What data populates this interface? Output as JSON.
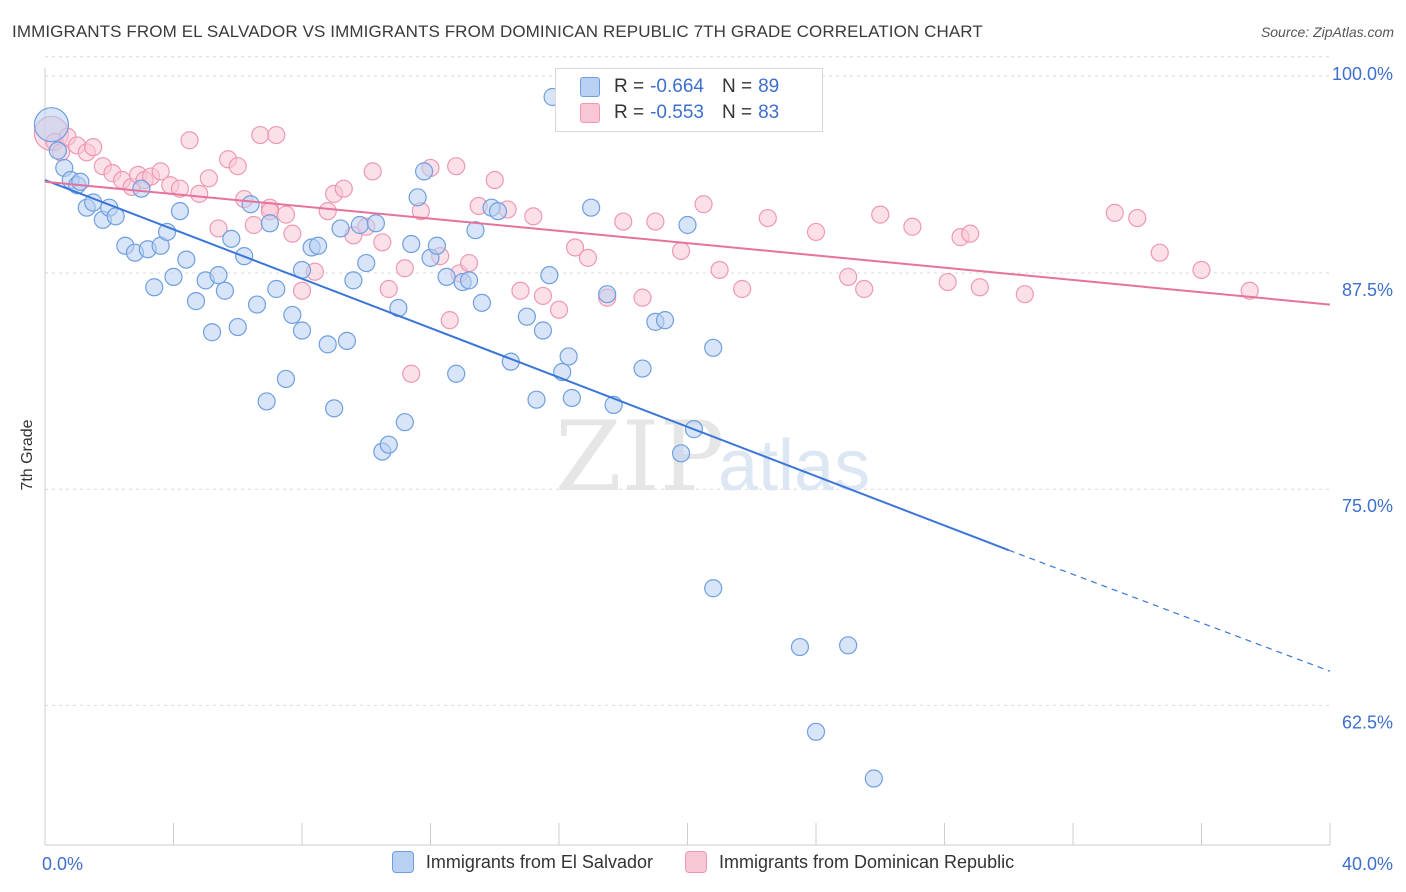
{
  "title": "IMMIGRANTS FROM EL SALVADOR VS IMMIGRANTS FROM DOMINICAN REPUBLIC 7TH GRADE CORRELATION CHART",
  "source": "Source: ZipAtlas.com",
  "watermark": {
    "zip": "ZIP",
    "atlas": "atlas"
  },
  "colors": {
    "blue_fill": "#b8d0f2",
    "blue_stroke": "#6f9fe0",
    "blue_line": "#3a76d8",
    "pink_fill": "#f9c6d6",
    "pink_stroke": "#ee99b4",
    "pink_line": "#e5739c",
    "tick_label": "#3d6fcf",
    "grid": "#d9d9d9"
  },
  "stats": [
    {
      "r_label": "R = ",
      "r_value": "-0.664",
      "n_label": "N = ",
      "n_value": "89"
    },
    {
      "r_label": "R = ",
      "r_value": "-0.553",
      "n_label": "N = ",
      "n_value": "83"
    }
  ],
  "chart_data": {
    "type": "scatter",
    "title": "IMMIGRANTS FROM EL SALVADOR VS IMMIGRANTS FROM DOMINICAN REPUBLIC 7TH GRADE CORRELATION CHART",
    "xlabel": "",
    "ylabel": "7th Grade",
    "xlim": [
      0,
      40
    ],
    "ylim": [
      50,
      100
    ],
    "x_tick_labels": [
      "0.0%",
      "40.0%"
    ],
    "y_ticks": [
      100,
      87.5,
      75,
      62.5
    ],
    "y_tick_labels": [
      "100.0%",
      "87.5%",
      "75.0%",
      "62.5%"
    ],
    "grid": true,
    "legend_position": "bottom",
    "series": [
      {
        "name": "Immigrants from El Salvador",
        "color": "#6f9fe0",
        "trend": {
          "x0": 0,
          "y0": 93.8,
          "x1": 30,
          "y1": 72.4,
          "dashed_to_x": 40,
          "dashed_to_y": 65.4
        },
        "points": [
          [
            0.2,
            97.0
          ],
          [
            0.4,
            95.5
          ],
          [
            0.6,
            94.5
          ],
          [
            0.8,
            93.8
          ],
          [
            1.0,
            93.5
          ],
          [
            1.1,
            93.7
          ],
          [
            1.3,
            92.2
          ],
          [
            1.5,
            92.5
          ],
          [
            1.8,
            91.5
          ],
          [
            2.0,
            92.2
          ],
          [
            2.2,
            91.7
          ],
          [
            2.5,
            90.0
          ],
          [
            2.8,
            89.6
          ],
          [
            3.0,
            93.3
          ],
          [
            3.2,
            89.8
          ],
          [
            3.4,
            87.6
          ],
          [
            3.6,
            90.0
          ],
          [
            3.8,
            90.8
          ],
          [
            4.0,
            88.2
          ],
          [
            4.2,
            92.0
          ],
          [
            4.4,
            89.2
          ],
          [
            4.7,
            86.8
          ],
          [
            5.0,
            88.0
          ],
          [
            5.2,
            85.0
          ],
          [
            5.4,
            88.3
          ],
          [
            5.6,
            87.4
          ],
          [
            5.8,
            90.4
          ],
          [
            6.0,
            85.3
          ],
          [
            6.2,
            89.4
          ],
          [
            6.4,
            92.4
          ],
          [
            6.6,
            86.6
          ],
          [
            6.9,
            81.0
          ],
          [
            7.0,
            91.3
          ],
          [
            7.2,
            87.5
          ],
          [
            7.5,
            82.3
          ],
          [
            7.7,
            86.0
          ],
          [
            8.0,
            88.6
          ],
          [
            8.0,
            85.1
          ],
          [
            8.3,
            89.9
          ],
          [
            8.5,
            90.0
          ],
          [
            8.8,
            84.3
          ],
          [
            9.0,
            80.6
          ],
          [
            9.2,
            91.0
          ],
          [
            9.4,
            84.5
          ],
          [
            9.6,
            88.0
          ],
          [
            9.8,
            91.2
          ],
          [
            10.0,
            89.0
          ],
          [
            10.3,
            91.3
          ],
          [
            10.5,
            78.1
          ],
          [
            10.7,
            78.5
          ],
          [
            11.0,
            86.4
          ],
          [
            11.2,
            79.8
          ],
          [
            11.4,
            90.1
          ],
          [
            11.6,
            92.8
          ],
          [
            11.8,
            94.3
          ],
          [
            12.0,
            89.3
          ],
          [
            12.2,
            90.0
          ],
          [
            12.5,
            88.2
          ],
          [
            12.8,
            82.6
          ],
          [
            13.0,
            87.9
          ],
          [
            13.2,
            88.0
          ],
          [
            13.4,
            90.9
          ],
          [
            13.6,
            86.7
          ],
          [
            13.9,
            92.2
          ],
          [
            14.1,
            92.0
          ],
          [
            14.5,
            83.3
          ],
          [
            15.0,
            85.9
          ],
          [
            15.3,
            81.1
          ],
          [
            15.5,
            85.1
          ],
          [
            15.7,
            88.3
          ],
          [
            15.8,
            98.6
          ],
          [
            16.1,
            82.7
          ],
          [
            16.3,
            83.6
          ],
          [
            16.4,
            81.2
          ],
          [
            17.0,
            92.2
          ],
          [
            17.5,
            87.2
          ],
          [
            17.7,
            80.8
          ],
          [
            18.6,
            82.9
          ],
          [
            19.0,
            85.6
          ],
          [
            19.3,
            85.7
          ],
          [
            19.8,
            78.0
          ],
          [
            20.0,
            91.2
          ],
          [
            20.2,
            79.4
          ],
          [
            20.8,
            84.1
          ],
          [
            20.8,
            70.2
          ],
          [
            23.5,
            66.8
          ],
          [
            24.0,
            61.9
          ],
          [
            25.0,
            66.9
          ],
          [
            25.8,
            59.2
          ]
        ]
      },
      {
        "name": "Immigrants from Dominican Republic",
        "color": "#ee99b4",
        "trend": {
          "x0": 0,
          "y0": 93.7,
          "x1": 40,
          "y1": 86.6
        },
        "points": [
          [
            0.2,
            96.5
          ],
          [
            0.3,
            96.0
          ],
          [
            0.5,
            95.4
          ],
          [
            0.7,
            96.3
          ],
          [
            1.0,
            95.8
          ],
          [
            1.3,
            95.4
          ],
          [
            1.5,
            95.7
          ],
          [
            1.8,
            94.6
          ],
          [
            2.1,
            94.2
          ],
          [
            2.4,
            93.8
          ],
          [
            2.7,
            93.4
          ],
          [
            2.9,
            94.1
          ],
          [
            3.1,
            93.8
          ],
          [
            3.3,
            94.0
          ],
          [
            3.6,
            94.3
          ],
          [
            3.9,
            93.5
          ],
          [
            4.2,
            93.3
          ],
          [
            4.5,
            96.1
          ],
          [
            4.8,
            93.0
          ],
          [
            5.1,
            93.9
          ],
          [
            5.4,
            91.0
          ],
          [
            5.7,
            95.0
          ],
          [
            6.0,
            94.6
          ],
          [
            6.2,
            92.7
          ],
          [
            6.5,
            91.2
          ],
          [
            6.7,
            96.4
          ],
          [
            7.0,
            92.2
          ],
          [
            7.2,
            96.4
          ],
          [
            7.5,
            91.8
          ],
          [
            7.7,
            90.7
          ],
          [
            8.0,
            87.4
          ],
          [
            8.4,
            88.5
          ],
          [
            8.8,
            92.0
          ],
          [
            9.0,
            93.0
          ],
          [
            9.3,
            93.3
          ],
          [
            9.6,
            90.6
          ],
          [
            10.0,
            91.1
          ],
          [
            10.2,
            94.3
          ],
          [
            10.5,
            90.2
          ],
          [
            10.7,
            87.5
          ],
          [
            11.2,
            88.7
          ],
          [
            11.4,
            82.6
          ],
          [
            11.7,
            92.0
          ],
          [
            12.0,
            94.5
          ],
          [
            12.3,
            89.4
          ],
          [
            12.6,
            85.7
          ],
          [
            12.9,
            88.4
          ],
          [
            13.2,
            89.0
          ],
          [
            13.5,
            92.3
          ],
          [
            14.0,
            93.8
          ],
          [
            14.4,
            92.1
          ],
          [
            14.8,
            87.4
          ],
          [
            15.2,
            91.7
          ],
          [
            15.5,
            87.1
          ],
          [
            16.0,
            86.3
          ],
          [
            16.5,
            89.9
          ],
          [
            16.9,
            89.3
          ],
          [
            17.5,
            87.0
          ],
          [
            18.0,
            91.4
          ],
          [
            18.6,
            87.0
          ],
          [
            19.0,
            91.4
          ],
          [
            19.8,
            89.7
          ],
          [
            20.5,
            92.4
          ],
          [
            21.0,
            88.6
          ],
          [
            21.7,
            87.5
          ],
          [
            22.5,
            91.6
          ],
          [
            24.0,
            90.8
          ],
          [
            25.0,
            88.2
          ],
          [
            25.5,
            87.5
          ],
          [
            26.0,
            91.8
          ],
          [
            27.0,
            91.1
          ],
          [
            28.1,
            87.9
          ],
          [
            28.5,
            90.5
          ],
          [
            28.8,
            90.7
          ],
          [
            29.1,
            87.6
          ],
          [
            30.5,
            87.2
          ],
          [
            33.3,
            91.9
          ],
          [
            34.0,
            91.6
          ],
          [
            34.7,
            89.6
          ],
          [
            36.0,
            88.6
          ],
          [
            37.5,
            87.4
          ],
          [
            7.0,
            92.0
          ],
          [
            12.8,
            94.6
          ]
        ]
      }
    ]
  },
  "legend": {
    "items": [
      {
        "label": "Immigrants from El Salvador"
      },
      {
        "label": "Immigrants from Dominican Republic"
      }
    ]
  }
}
